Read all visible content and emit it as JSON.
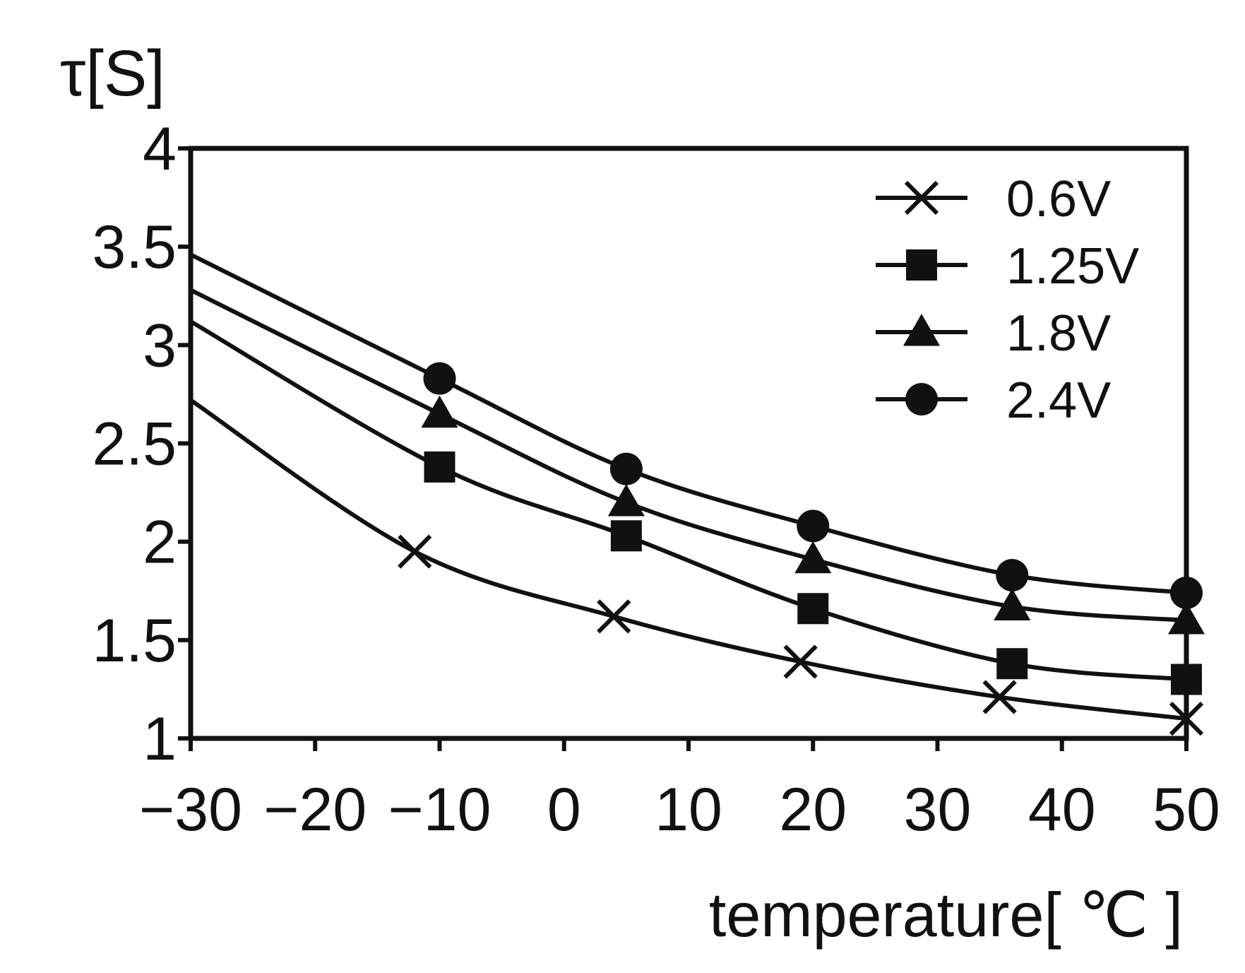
{
  "chart_data": {
    "type": "line",
    "title": "",
    "xlabel": "temperature[ ℃ ]",
    "ylabel": "τ[S]",
    "xlim": [
      -30,
      50
    ],
    "ylim": [
      1,
      4
    ],
    "x_ticks": [
      -30,
      -20,
      -10,
      0,
      10,
      20,
      30,
      40,
      50
    ],
    "x_tick_labels": [
      "−30",
      "−20",
      "−10",
      "0",
      "10",
      "20",
      "30",
      "40",
      "50"
    ],
    "y_ticks": [
      1,
      1.5,
      2,
      2.5,
      3,
      3.5,
      4
    ],
    "y_tick_labels": [
      "1",
      "1.5",
      "2",
      "2.5",
      "3",
      "3.5",
      "4"
    ],
    "grid": false,
    "legend_position": "top-right",
    "colors": {
      "ink": "#111111",
      "background": "#ffffff"
    },
    "series": [
      {
        "name": "0.6V",
        "marker": "x",
        "markers": [
          [
            -12,
            1.95
          ],
          [
            4,
            1.62
          ],
          [
            19,
            1.39
          ],
          [
            35,
            1.21
          ],
          [
            50,
            1.1
          ]
        ],
        "curve": [
          [
            -30,
            2.72
          ],
          [
            -12,
            1.95
          ],
          [
            4,
            1.62
          ],
          [
            19,
            1.39
          ],
          [
            35,
            1.21
          ],
          [
            50,
            1.1
          ]
        ]
      },
      {
        "name": "1.25V",
        "marker": "square",
        "markers": [
          [
            -10,
            2.38
          ],
          [
            5,
            2.03
          ],
          [
            20,
            1.66
          ],
          [
            36,
            1.38
          ],
          [
            50,
            1.3
          ]
        ],
        "curve": [
          [
            -30,
            3.12
          ],
          [
            -10,
            2.38
          ],
          [
            5,
            2.03
          ],
          [
            20,
            1.66
          ],
          [
            36,
            1.38
          ],
          [
            50,
            1.3
          ]
        ]
      },
      {
        "name": "1.8V",
        "marker": "triangle",
        "markers": [
          [
            -10,
            2.65
          ],
          [
            5,
            2.2
          ],
          [
            20,
            1.91
          ],
          [
            36,
            1.67
          ],
          [
            50,
            1.6
          ]
        ],
        "curve": [
          [
            -30,
            3.28
          ],
          [
            -10,
            2.65
          ],
          [
            5,
            2.2
          ],
          [
            20,
            1.91
          ],
          [
            36,
            1.67
          ],
          [
            50,
            1.6
          ]
        ]
      },
      {
        "name": "2.4V",
        "marker": "circle",
        "markers": [
          [
            -10,
            2.83
          ],
          [
            5,
            2.37
          ],
          [
            20,
            2.08
          ],
          [
            36,
            1.83
          ],
          [
            50,
            1.74
          ]
        ],
        "curve": [
          [
            -30,
            3.46
          ],
          [
            -10,
            2.83
          ],
          [
            5,
            2.37
          ],
          [
            20,
            2.08
          ],
          [
            36,
            1.83
          ],
          [
            50,
            1.74
          ]
        ]
      }
    ]
  }
}
